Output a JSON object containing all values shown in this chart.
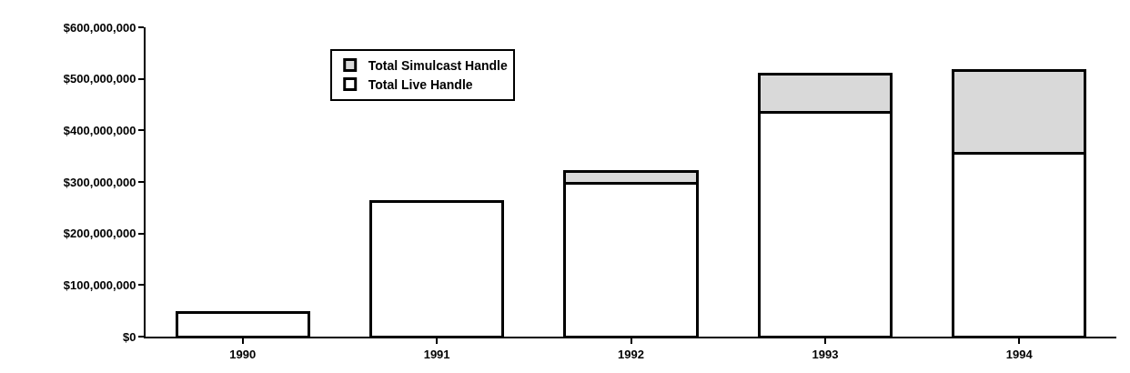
{
  "chart_data": {
    "type": "bar",
    "stacked": true,
    "categories": [
      "1990",
      "1991",
      "1992",
      "1993",
      "1994"
    ],
    "series": [
      {
        "name": "Total Live Handle",
        "color": "#ffffff",
        "values": [
          46000000,
          262000000,
          298000000,
          435000000,
          356000000
        ]
      },
      {
        "name": "Total Simulcast Handle",
        "color": "#d9d9d9",
        "values": [
          null,
          null,
          22000000,
          75000000,
          161000000
        ]
      }
    ],
    "ylim": [
      0,
      600000000
    ],
    "yticks": [
      {
        "value": 0,
        "label": "$0"
      },
      {
        "value": 100000000,
        "label": "$100,000,000"
      },
      {
        "value": 200000000,
        "label": "$200,000,000"
      },
      {
        "value": 300000000,
        "label": "$300,000,000"
      },
      {
        "value": 400000000,
        "label": "$400,000,000"
      },
      {
        "value": 500000000,
        "label": "$500,000,000"
      },
      {
        "value": 600000000,
        "label": "$600,000,000"
      }
    ],
    "legend": "top left",
    "grid": false
  }
}
